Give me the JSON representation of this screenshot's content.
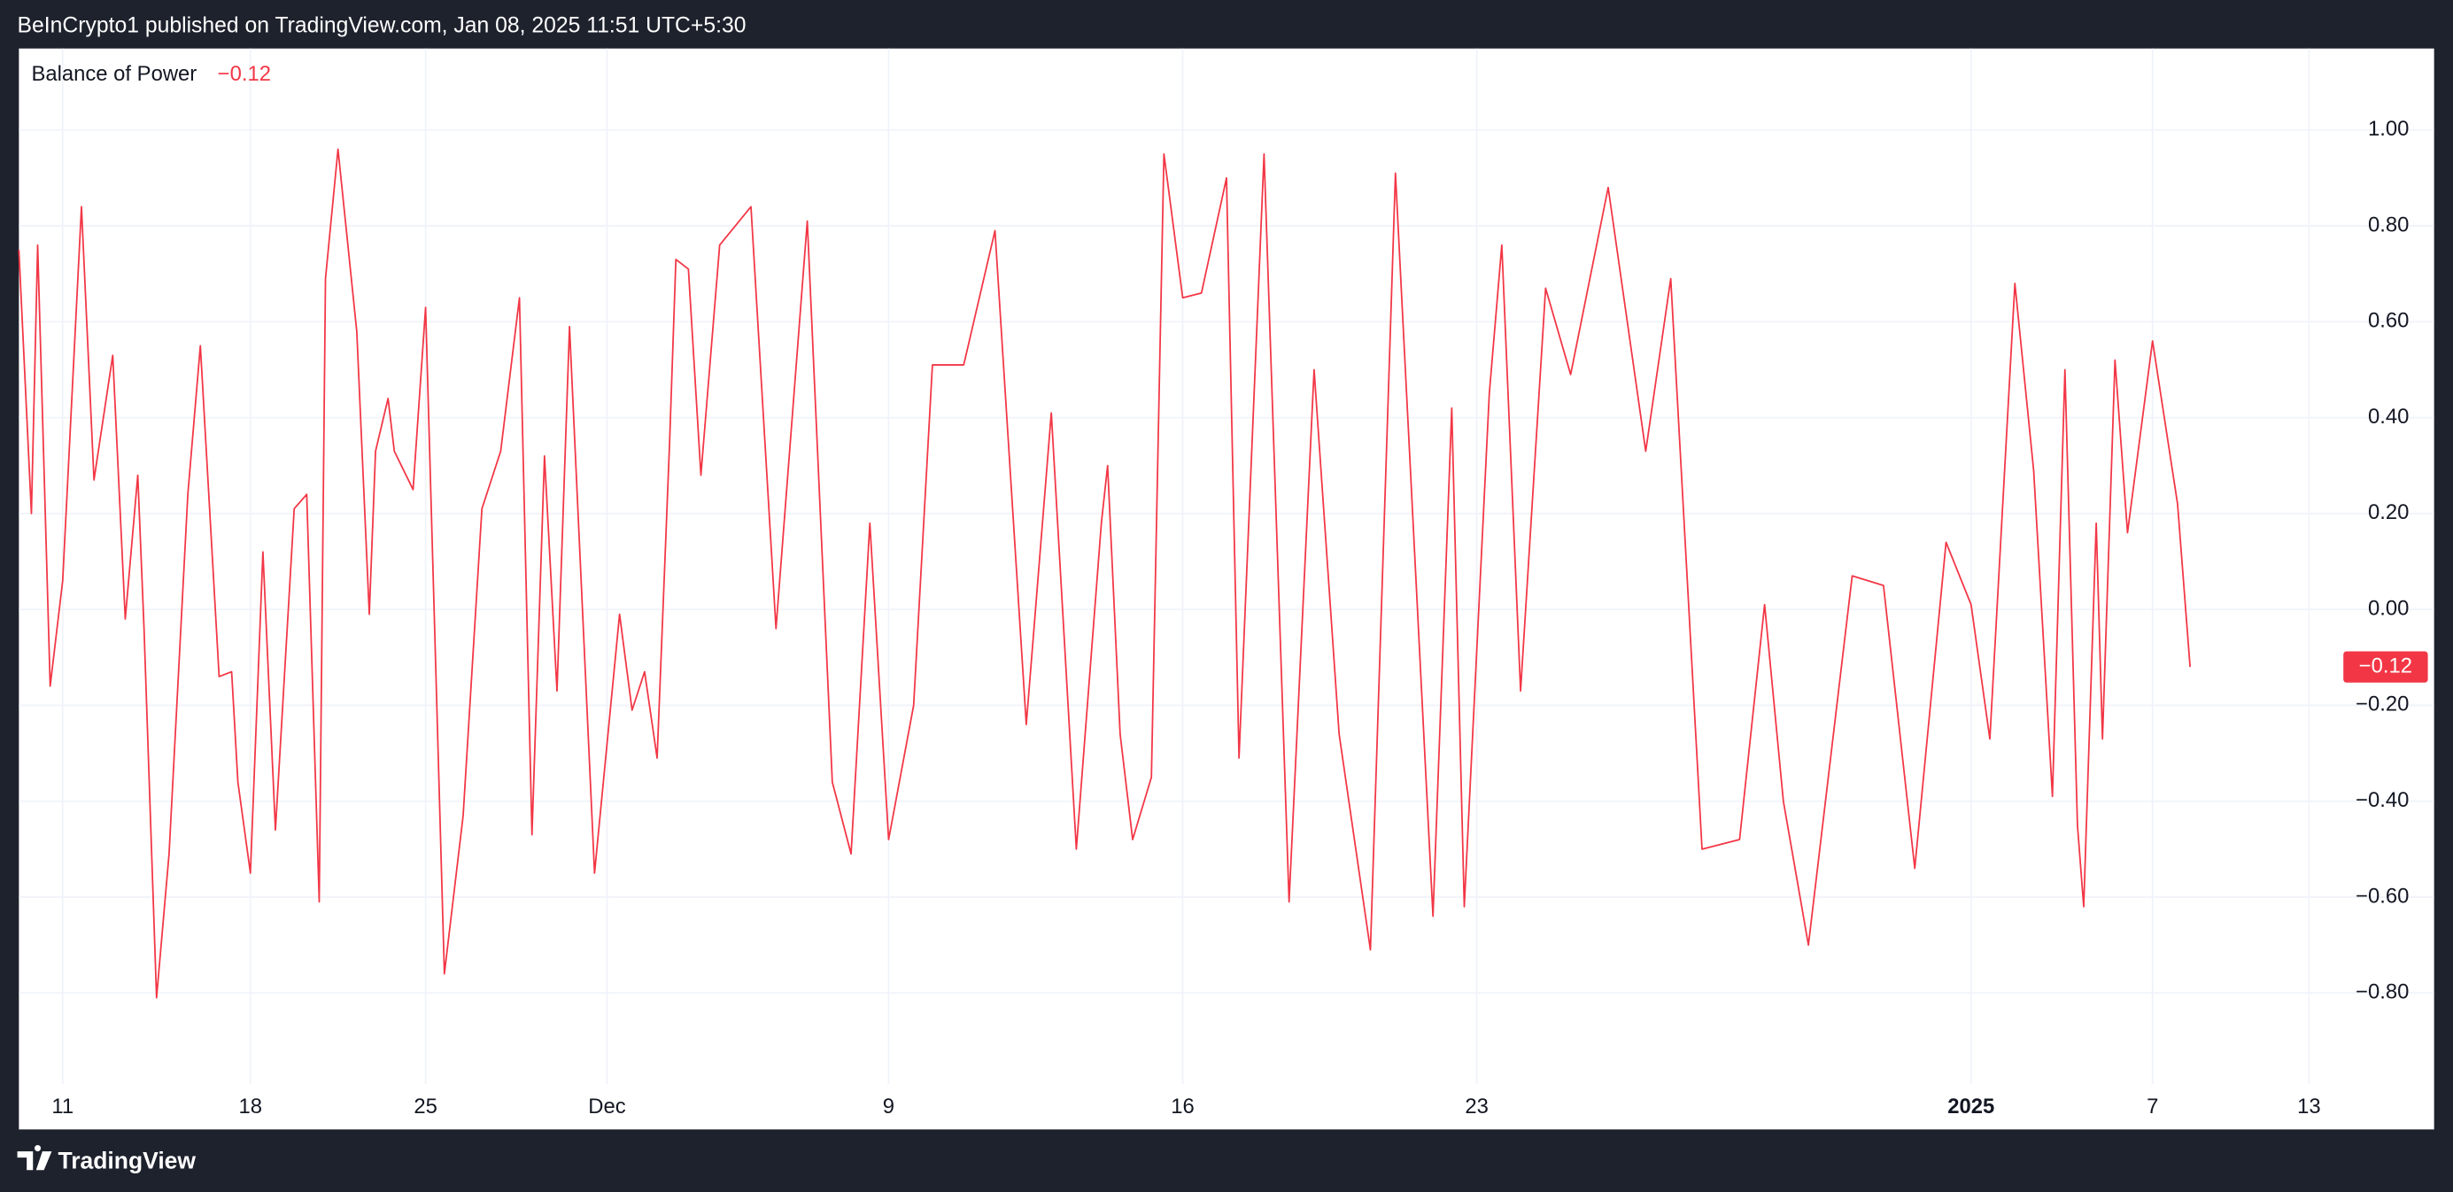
{
  "header": "BeInCrypto1 published on TradingView.com, Jan 08, 2025 11:51 UTC+5:30",
  "footer": "TradingView",
  "chart_data": {
    "type": "line",
    "title": "Balance of Power",
    "last_value_label": "−0.12",
    "x": [
      0,
      2,
      3,
      5,
      7,
      10,
      12,
      15,
      17,
      19,
      20,
      22,
      24,
      27,
      29,
      32,
      34,
      35,
      37,
      39,
      41,
      44,
      46,
      48,
      49,
      51,
      54,
      56,
      57,
      59,
      60,
      63,
      65,
      68,
      71,
      74,
      77,
      80,
      82,
      84,
      86,
      88,
      92,
      96,
      98,
      100,
      102,
      104,
      105,
      107,
      109,
      112,
      117,
      121,
      126,
      130,
      133,
      136,
      139,
      143,
      146,
      151,
      156,
      161,
      165,
      169,
      173,
      174,
      176,
      178,
      181,
      183,
      186,
      189,
      193,
      195,
      199,
      203,
      207,
      211,
      216,
      220,
      226,
      229,
      231,
      235,
      237,
      240,
      244,
      248,
      254,
      260,
      264,
      269,
      275,
      279,
      282,
      286,
      293,
      298,
      303,
      308,
      312,
      315,
      319,
      322,
      325,
      327,
      329,
      330,
      332,
      333,
      335,
      337,
      341,
      345,
      347
    ],
    "series": [
      {
        "name": "Balance of Power",
        "color": "#f23645",
        "values": [
          0.75,
          0.2,
          0.76,
          -0.16,
          0.06,
          0.84,
          0.27,
          0.53,
          -0.02,
          0.28,
          -0.04,
          -0.81,
          -0.51,
          0.24,
          0.55,
          -0.14,
          -0.13,
          -0.36,
          -0.55,
          0.12,
          -0.46,
          0.21,
          0.24,
          -0.61,
          0.69,
          0.96,
          0.58,
          -0.01,
          0.33,
          0.44,
          0.33,
          0.25,
          0.63,
          -0.76,
          -0.43,
          0.21,
          0.33,
          0.65,
          -0.47,
          0.32,
          -0.17,
          0.59,
          -0.55,
          -0.01,
          -0.21,
          -0.13,
          -0.31,
          0.35,
          0.73,
          0.71,
          0.28,
          0.76,
          0.84,
          -0.04,
          0.81,
          -0.36,
          -0.51,
          0.18,
          -0.48,
          -0.2,
          0.51,
          0.51,
          0.79,
          -0.24,
          0.41,
          -0.5,
          0.18,
          0.3,
          -0.26,
          -0.48,
          -0.35,
          0.95,
          0.65,
          0.66,
          0.9,
          -0.31,
          0.95,
          -0.61,
          0.5,
          -0.26,
          -0.71,
          0.91,
          -0.64,
          0.42,
          -0.62,
          0.45,
          0.76,
          -0.17,
          0.67,
          0.49,
          0.88,
          0.33,
          0.69,
          -0.5,
          -0.48,
          0.01,
          -0.4,
          -0.7,
          0.07,
          0.05,
          -0.54,
          0.14,
          0.01,
          -0.27,
          0.68,
          0.29,
          -0.39,
          0.5,
          -0.45,
          -0.62,
          0.18,
          -0.27,
          0.52,
          0.16,
          0.56,
          0.22,
          -0.12
        ]
      }
    ],
    "xlim": [
      0,
      370
    ],
    "xticks": [
      {
        "value": 7,
        "label": "11"
      },
      {
        "value": 37,
        "label": "18"
      },
      {
        "value": 65,
        "label": "25"
      },
      {
        "value": 94,
        "label": "Dec"
      },
      {
        "value": 139,
        "label": "9"
      },
      {
        "value": 186,
        "label": "16"
      },
      {
        "value": 233,
        "label": "23"
      },
      {
        "value": 312,
        "label": "2025",
        "bold": true
      },
      {
        "value": 341,
        "label": "7"
      },
      {
        "value": 366,
        "label": "13"
      }
    ],
    "ylim": [
      -0.99,
      1.17
    ],
    "yticks": [
      {
        "value": 1,
        "label": "1.00"
      },
      {
        "value": 0.8,
        "label": "0.80"
      },
      {
        "value": 0.6,
        "label": "0.60"
      },
      {
        "value": 0.4,
        "label": "0.40"
      },
      {
        "value": 0.2,
        "label": "0.20"
      },
      {
        "value": 0,
        "label": "0.00"
      },
      {
        "value": -0.2,
        "label": "−0.20"
      },
      {
        "value": -0.4,
        "label": "−0.40"
      },
      {
        "value": -0.6,
        "label": "−0.60"
      },
      {
        "value": -0.8,
        "label": "−0.80"
      }
    ],
    "grid": true
  }
}
